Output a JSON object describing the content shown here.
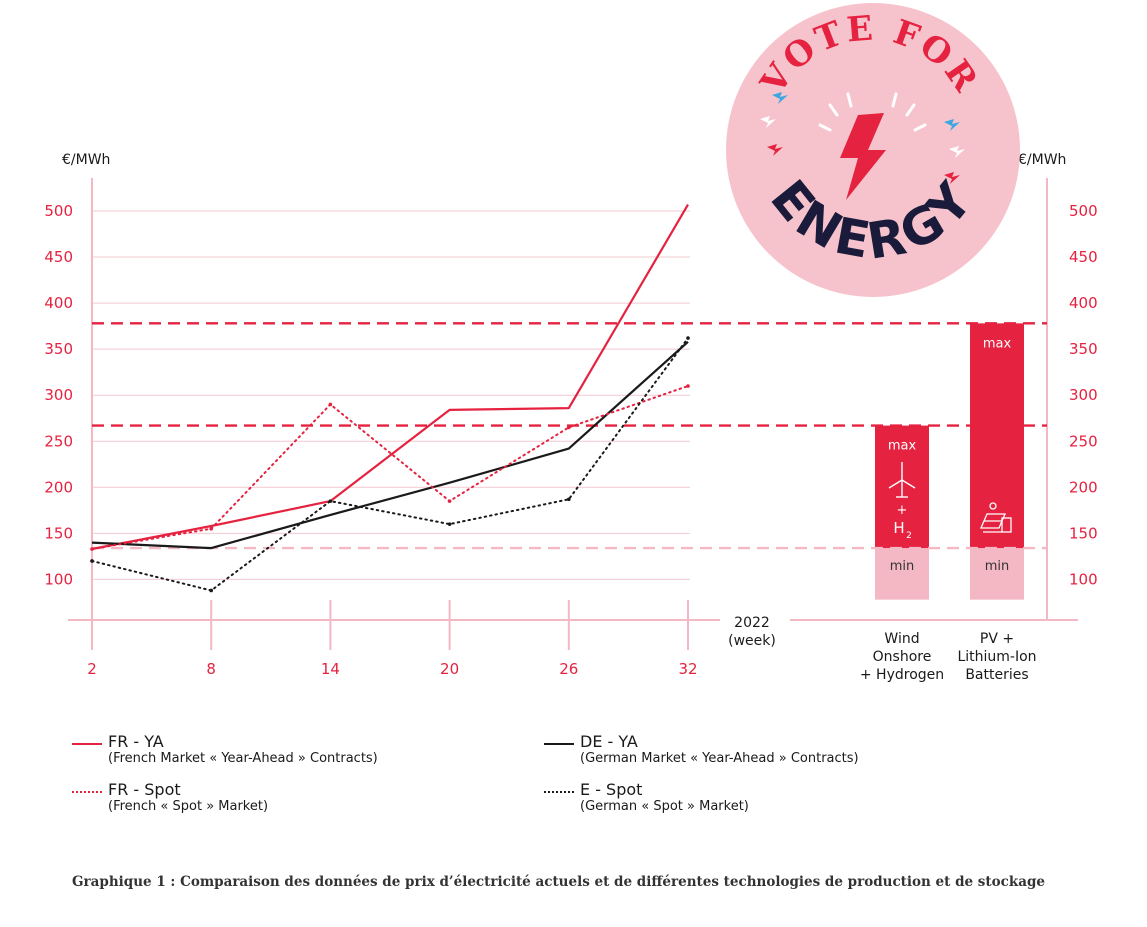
{
  "chart_data": {
    "type": "line",
    "unit_left": "€/MWh",
    "unit_right": "€/MWh",
    "x_axis_label": "2022",
    "x_axis_sublabel": "(week)",
    "x": [
      2,
      8,
      14,
      20,
      26,
      32
    ],
    "y_ticks": [
      100,
      150,
      200,
      250,
      300,
      350,
      400,
      450,
      500
    ],
    "ylim": [
      75,
      510
    ],
    "series": [
      {
        "name": "FR - YA",
        "description": "(French Market « Year-Ahead » Contracts)",
        "style": "solid",
        "color": "#e5223f",
        "points": [
          [
            2,
            133
          ],
          [
            8,
            158
          ],
          [
            14,
            185
          ],
          [
            20,
            284
          ],
          [
            26,
            286
          ],
          [
            32,
            507
          ]
        ]
      },
      {
        "name": "DE - YA",
        "description": "(German Market « Year-Ahead » Contracts)",
        "style": "solid",
        "color": "#1a1a1a",
        "points": [
          [
            2,
            140
          ],
          [
            8,
            134
          ],
          [
            14,
            170
          ],
          [
            20,
            205
          ],
          [
            26,
            242
          ],
          [
            32,
            358
          ]
        ]
      },
      {
        "name": "FR - Spot",
        "description": "(French « Spot » Market)",
        "style": "dotted",
        "color": "#e5223f",
        "points": [
          [
            2,
            133
          ],
          [
            8,
            155
          ],
          [
            14,
            290
          ],
          [
            20,
            185
          ],
          [
            26,
            265
          ],
          [
            32,
            310
          ]
        ]
      },
      {
        "name": "E - Spot",
        "description": "(German « Spot » Market)",
        "style": "dotted",
        "color": "#1a1a1a",
        "points": [
          [
            2,
            120
          ],
          [
            8,
            88
          ],
          [
            14,
            185
          ],
          [
            20,
            160
          ],
          [
            26,
            187
          ],
          [
            32,
            362
          ]
        ]
      }
    ],
    "reference_lines": [
      {
        "value": 378,
        "color": "#e5223f"
      },
      {
        "value": 267,
        "color": "#e5223f"
      },
      {
        "value": 134,
        "color": "#f4b8c4"
      }
    ],
    "bars": [
      {
        "category_lines": [
          "Wind",
          "Onshore",
          "+ Hydrogen"
        ],
        "min": 78,
        "low": 134,
        "max": 267,
        "max_label": "max",
        "min_label": "min",
        "icon": "wind-turbine-hydrogen-icon",
        "icon_plus": "+",
        "icon_h2": "H",
        "icon_h2_sub": "2"
      },
      {
        "category_lines": [
          "PV +",
          "Lithium-Ion",
          "Batteries"
        ],
        "min": 78,
        "low": 134,
        "max": 378,
        "max_label": "max",
        "min_label": "min",
        "icon": "solar-panel-battery-icon"
      }
    ],
    "colors": {
      "red": "#e5223f",
      "pink": "#f4b8c4",
      "dark": "#1a1a1a",
      "badge_bg": "#f6c3cc",
      "badge_blue": "#3aa7e0"
    }
  },
  "badge": {
    "top": "VOTE FOR",
    "bottom": "ENERGY"
  },
  "caption": "Graphique 1 : Comparaison des données de prix d’électricité actuels et de différentes technologies de production et de stockage"
}
